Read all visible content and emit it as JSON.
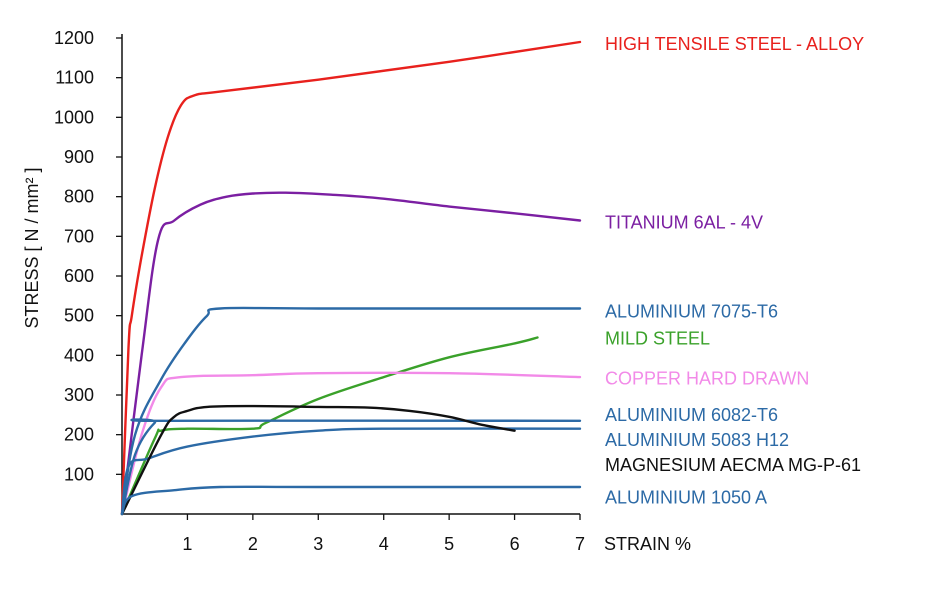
{
  "chart_data": {
    "type": "line",
    "ylabel": "STRESS [ N / mm² ]",
    "xlabel": "STRAIN %",
    "xlim": [
      0,
      7
    ],
    "ylim": [
      0,
      1200
    ],
    "x_ticks": [
      1,
      2,
      3,
      4,
      5,
      6,
      7
    ],
    "y_ticks": [
      100,
      200,
      300,
      400,
      500,
      600,
      700,
      800,
      900,
      1000,
      1100,
      1200
    ],
    "grid": false,
    "series": [
      {
        "name": "HIGH TENSILE  STEEL - ALLOY",
        "color": "#e8211d",
        "label_y": 1185,
        "points": [
          [
            0,
            0
          ],
          [
            0.1,
            420
          ],
          [
            0.15,
            500
          ],
          [
            0.3,
            650
          ],
          [
            0.5,
            820
          ],
          [
            0.7,
            950
          ],
          [
            0.9,
            1030
          ],
          [
            1.1,
            1055
          ],
          [
            1.5,
            1065
          ],
          [
            3,
            1095
          ],
          [
            5,
            1140
          ],
          [
            7,
            1190
          ]
        ]
      },
      {
        "name": "TITANIUM 6AL - 4V",
        "color": "#7b1fa2",
        "label_y": 735,
        "points": [
          [
            0,
            0
          ],
          [
            0.3,
            400
          ],
          [
            0.55,
            690
          ],
          [
            0.8,
            740
          ],
          [
            1.2,
            780
          ],
          [
            1.6,
            800
          ],
          [
            2,
            808
          ],
          [
            2.5,
            810
          ],
          [
            3.2,
            805
          ],
          [
            4,
            795
          ],
          [
            5,
            775
          ],
          [
            6,
            758
          ],
          [
            7,
            740
          ]
        ]
      },
      {
        "name": "ALUMINIUM 7075-T6",
        "color": "#2c6aa6",
        "label_y": 510,
        "points": [
          [
            0,
            0
          ],
          [
            0.2,
            200
          ],
          [
            0.6,
            340
          ],
          [
            1,
            440
          ],
          [
            1.3,
            500
          ],
          [
            1.5,
            518
          ],
          [
            3,
            518
          ],
          [
            7,
            518
          ]
        ]
      },
      {
        "name": "MILD STEEL",
        "color": "#3aa12a",
        "label_y": 443,
        "points": [
          [
            0,
            0
          ],
          [
            0.5,
            190
          ],
          [
            0.6,
            210
          ],
          [
            1,
            215
          ],
          [
            2,
            215
          ],
          [
            2.2,
            230
          ],
          [
            3,
            290
          ],
          [
            4,
            345
          ],
          [
            5,
            395
          ],
          [
            6,
            430
          ],
          [
            6.35,
            445
          ]
        ]
      },
      {
        "name": "COPPER HARD DRAWN",
        "color": "#f28ae8",
        "label_y": 342,
        "points": [
          [
            0,
            0
          ],
          [
            0.3,
            200
          ],
          [
            0.6,
            320
          ],
          [
            0.9,
            345
          ],
          [
            2,
            350
          ],
          [
            3,
            355
          ],
          [
            5,
            355
          ],
          [
            7,
            345
          ]
        ]
      },
      {
        "name": "ALUMINIUM 6082-T6",
        "color": "#2c6aa6",
        "label_y": 250,
        "points": [
          [
            0,
            0
          ],
          [
            0.2,
            150
          ],
          [
            0.5,
            230
          ],
          [
            0.7,
            235
          ],
          [
            7,
            235
          ]
        ]
      },
      {
        "name": "ALUMINIUM 5083 H12",
        "color": "#2c6aa6",
        "label_y": 186,
        "points": [
          [
            0,
            0
          ],
          [
            0.1,
            120
          ],
          [
            0.4,
            140
          ],
          [
            1,
            170
          ],
          [
            2,
            195
          ],
          [
            3,
            210
          ],
          [
            4,
            215
          ],
          [
            7,
            215
          ]
        ]
      },
      {
        "name": "MAGNESIUM AECMA MG-P-61",
        "color": "#111111",
        "label_y": 124,
        "points": [
          [
            0,
            0
          ],
          [
            0.6,
            200
          ],
          [
            0.8,
            245
          ],
          [
            1,
            260
          ],
          [
            1.3,
            270
          ],
          [
            2,
            272
          ],
          [
            3,
            270
          ],
          [
            3.8,
            268
          ],
          [
            4.4,
            260
          ],
          [
            5,
            245
          ],
          [
            5.5,
            225
          ],
          [
            6,
            210
          ]
        ]
      },
      {
        "name": "ALUMINIUM 1050 A",
        "color": "#2c6aa6",
        "label_y": 42,
        "points": [
          [
            0,
            0
          ],
          [
            0.15,
            45
          ],
          [
            0.8,
            60
          ],
          [
            1.5,
            68
          ],
          [
            3,
            68
          ],
          [
            7,
            68
          ]
        ]
      }
    ]
  }
}
